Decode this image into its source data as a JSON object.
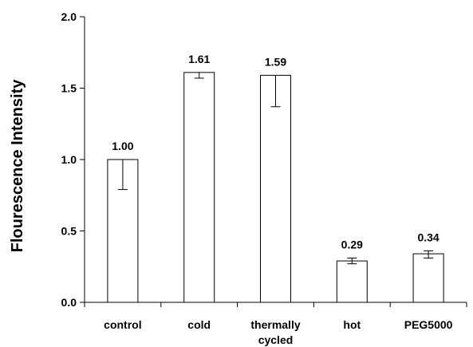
{
  "chart_data": {
    "type": "bar",
    "title": "",
    "xlabel": "",
    "ylabel": "Flourescence Intensity",
    "ylim": [
      0,
      2.0
    ],
    "yticks": [
      "0.0",
      "0.5",
      "1.0",
      "1.5",
      "2.0"
    ],
    "ytick_values": [
      0,
      0.5,
      1.0,
      1.5,
      2.0
    ],
    "grid": false,
    "categories": [
      [
        "control"
      ],
      [
        "cold"
      ],
      [
        "thermally",
        "cycled"
      ],
      [
        "hot"
      ],
      [
        "PEG5000"
      ]
    ],
    "values": [
      1.0,
      1.61,
      1.59,
      0.29,
      0.34
    ],
    "value_labels": [
      "1.00",
      "1.61",
      "1.59",
      "0.29",
      "0.34"
    ],
    "error_low": [
      0.79,
      1.57,
      1.37,
      0.27,
      0.31
    ],
    "error_high": [
      1.0,
      1.61,
      1.59,
      0.31,
      0.36
    ],
    "colors": {
      "bar_fill": "#ffffff",
      "bar_stroke": "#000000",
      "axis": "#000000"
    }
  }
}
